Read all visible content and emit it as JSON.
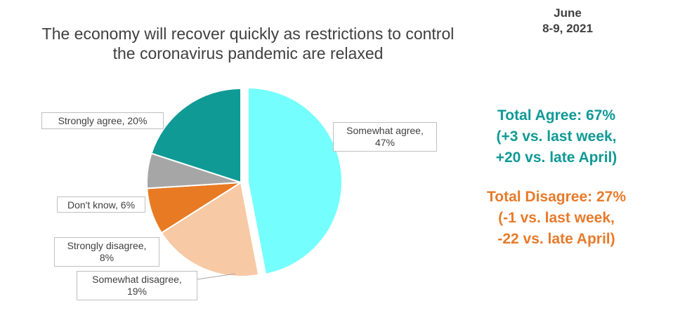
{
  "header": {
    "title_line1": "The economy will recover quickly as restrictions to control",
    "title_line2": "the coronavirus pandemic are relaxed",
    "date_line1": "June",
    "date_line2": "8-9, 2021"
  },
  "summary": {
    "agree_line1": "Total Agree: 67%",
    "agree_line2": "(+3 vs. last week,",
    "agree_line3": "+20 vs. late April)",
    "disagree_line1": "Total Disagree: 27%",
    "disagree_line2": "(-1 vs. last week,",
    "disagree_line3": "-22 vs. late April)",
    "agree_color": "#0f9a96",
    "disagree_color": "#e87a2a"
  },
  "chart_data": {
    "type": "pie",
    "title": "The economy will recover quickly as restrictions to control the coronavirus pandemic are relaxed",
    "slices": [
      {
        "label": "Somewhat agree",
        "value": 47,
        "display_line1": "Somewhat agree,",
        "display_line2": "47%",
        "color": "#75fefe",
        "exploded": true
      },
      {
        "label": "Somewhat disagree",
        "value": 19,
        "display_line1": "Somewhat disagree,",
        "display_line2": "19%",
        "color": "#f7c9a4",
        "exploded": false
      },
      {
        "label": "Strongly disagree",
        "value": 8,
        "display_line1": "Strongly disagree,",
        "display_line2": "8%",
        "color": "#e87a24",
        "exploded": false
      },
      {
        "label": "Don't know",
        "value": 6,
        "display_line1": "Don't know, 6%",
        "display_line2": "",
        "color": "#a6a6a6",
        "exploded": false
      },
      {
        "label": "Strongly agree",
        "value": 20,
        "display_line1": "Strongly agree, 20%",
        "display_line2": "",
        "color": "#0f9a96",
        "exploded": false
      }
    ],
    "start_angle_deg": 0,
    "direction": "clockwise",
    "legend": "none",
    "labels": "callouts"
  }
}
